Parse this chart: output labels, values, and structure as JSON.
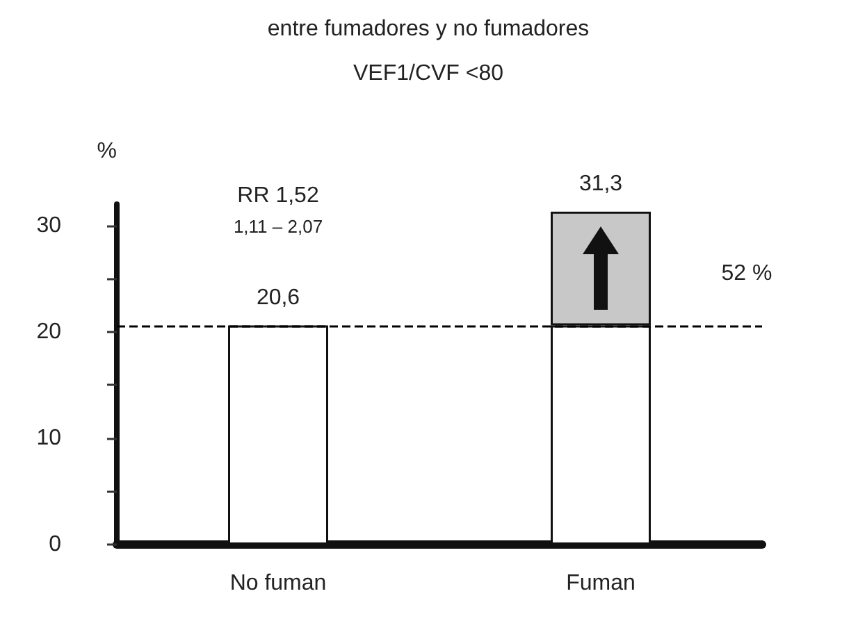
{
  "chart_data": {
    "type": "bar",
    "title": "entre fumadores y no fumadores",
    "subtitle": "VEF1/CVF <80",
    "ylabel": "%",
    "categories": [
      "No fuman",
      "Fuman"
    ],
    "stacked": true,
    "series": [
      {
        "color": "#ffffff",
        "values": [
          20.6,
          20.6
        ],
        "value_labels": [
          "20,6",
          null
        ]
      },
      {
        "color": "#c8c8c8",
        "values": [
          null,
          10.7
        ]
      }
    ],
    "totals": [
      null,
      "31,3"
    ],
    "ylim": [
      0,
      32
    ],
    "yticks": [
      0,
      {
        "value": 5,
        "label": null
      },
      10,
      {
        "value": 15,
        "label": null
      },
      20,
      {
        "value": 25,
        "label": null
      },
      30
    ],
    "ref_lines": [
      {
        "axis": "y",
        "value": 20.6,
        "color": "#000000",
        "line_style": "dashed"
      }
    ],
    "annotations": [
      "RR 1,52",
      "1,11 – 2,07",
      "52 %"
    ],
    "grid": false
  }
}
